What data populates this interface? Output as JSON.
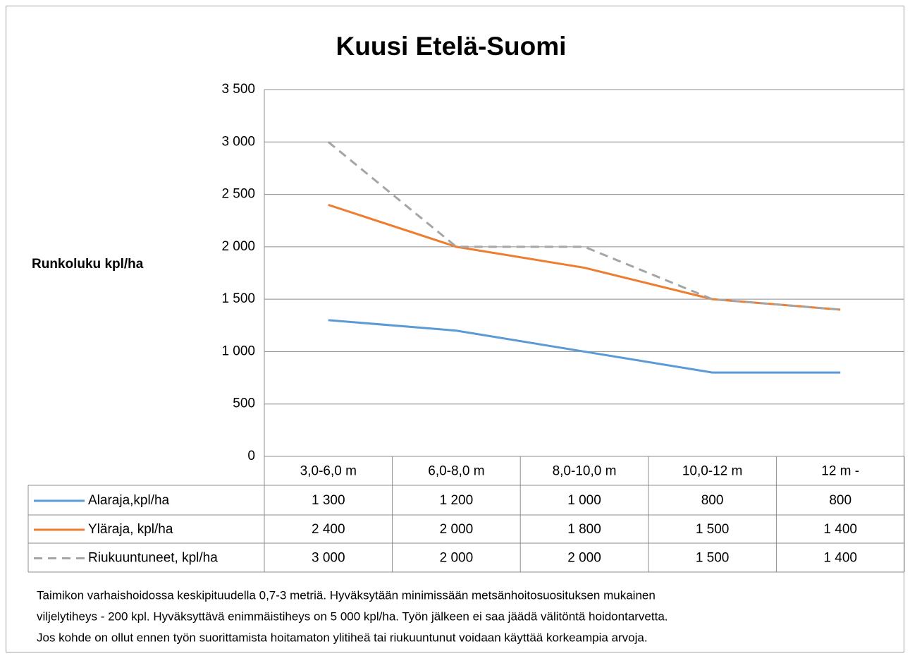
{
  "chart_data": {
    "type": "line",
    "title": "Kuusi Etelä-Suomi",
    "y_label": "Runkoluku kpl/ha",
    "categories": [
      "3,0-6,0 m",
      "6,0-8,0 m",
      "8,0-10,0 m",
      "10,0-12 m",
      "12 m -"
    ],
    "series": [
      {
        "name": "Alaraja,kpl/ha",
        "color": "#5b9bd5",
        "dash": false,
        "values": [
          1300,
          1200,
          1000,
          800,
          800
        ],
        "value_labels": [
          "1 300",
          "1 200",
          "1 000",
          "800",
          "800"
        ]
      },
      {
        "name": "Yläraja, kpl/ha",
        "color": "#ed7d31",
        "dash": false,
        "values": [
          2400,
          2000,
          1800,
          1500,
          1400
        ],
        "value_labels": [
          "2 400",
          "2 000",
          "1 800",
          "1 500",
          "1 400"
        ]
      },
      {
        "name": "Riukuuntuneet, kpl/ha",
        "color": "#a5a5a5",
        "dash": true,
        "values": [
          3000,
          2000,
          2000,
          1500,
          1400
        ],
        "value_labels": [
          "3 000",
          "2 000",
          "2 000",
          "1 500",
          "1 400"
        ]
      }
    ],
    "ylim": [
      0,
      3500
    ],
    "yticks": [
      0,
      500,
      {
        "value": 1000,
        "label": "1 000"
      },
      {
        "value": 1500,
        "label": "1 500"
      },
      {
        "value": 2000,
        "label": "2 000"
      },
      {
        "value": 2500,
        "label": "2 500"
      },
      {
        "value": 3000,
        "label": "3 000"
      },
      {
        "value": 3500,
        "label": "3 500"
      }
    ],
    "grid": true,
    "note": [
      "Taimikon varhaishoidossa keskipituudella 0,7-3 metriä. Hyväksytään minimissään metsänhoitosuosituksen mukainen",
      "viljelytiheys - 200  kpl. Hyväksyttävä enimmäistiheys on 5 000 kpl/ha. Työn jälkeen ei saa jäädä välitöntä hoidontarvetta.",
      "Jos kohde on ollut  ennen työn suorittamista hoitamaton ylitiheä tai riukuuntunut voidaan käyttää korkeampia arvoja."
    ]
  }
}
